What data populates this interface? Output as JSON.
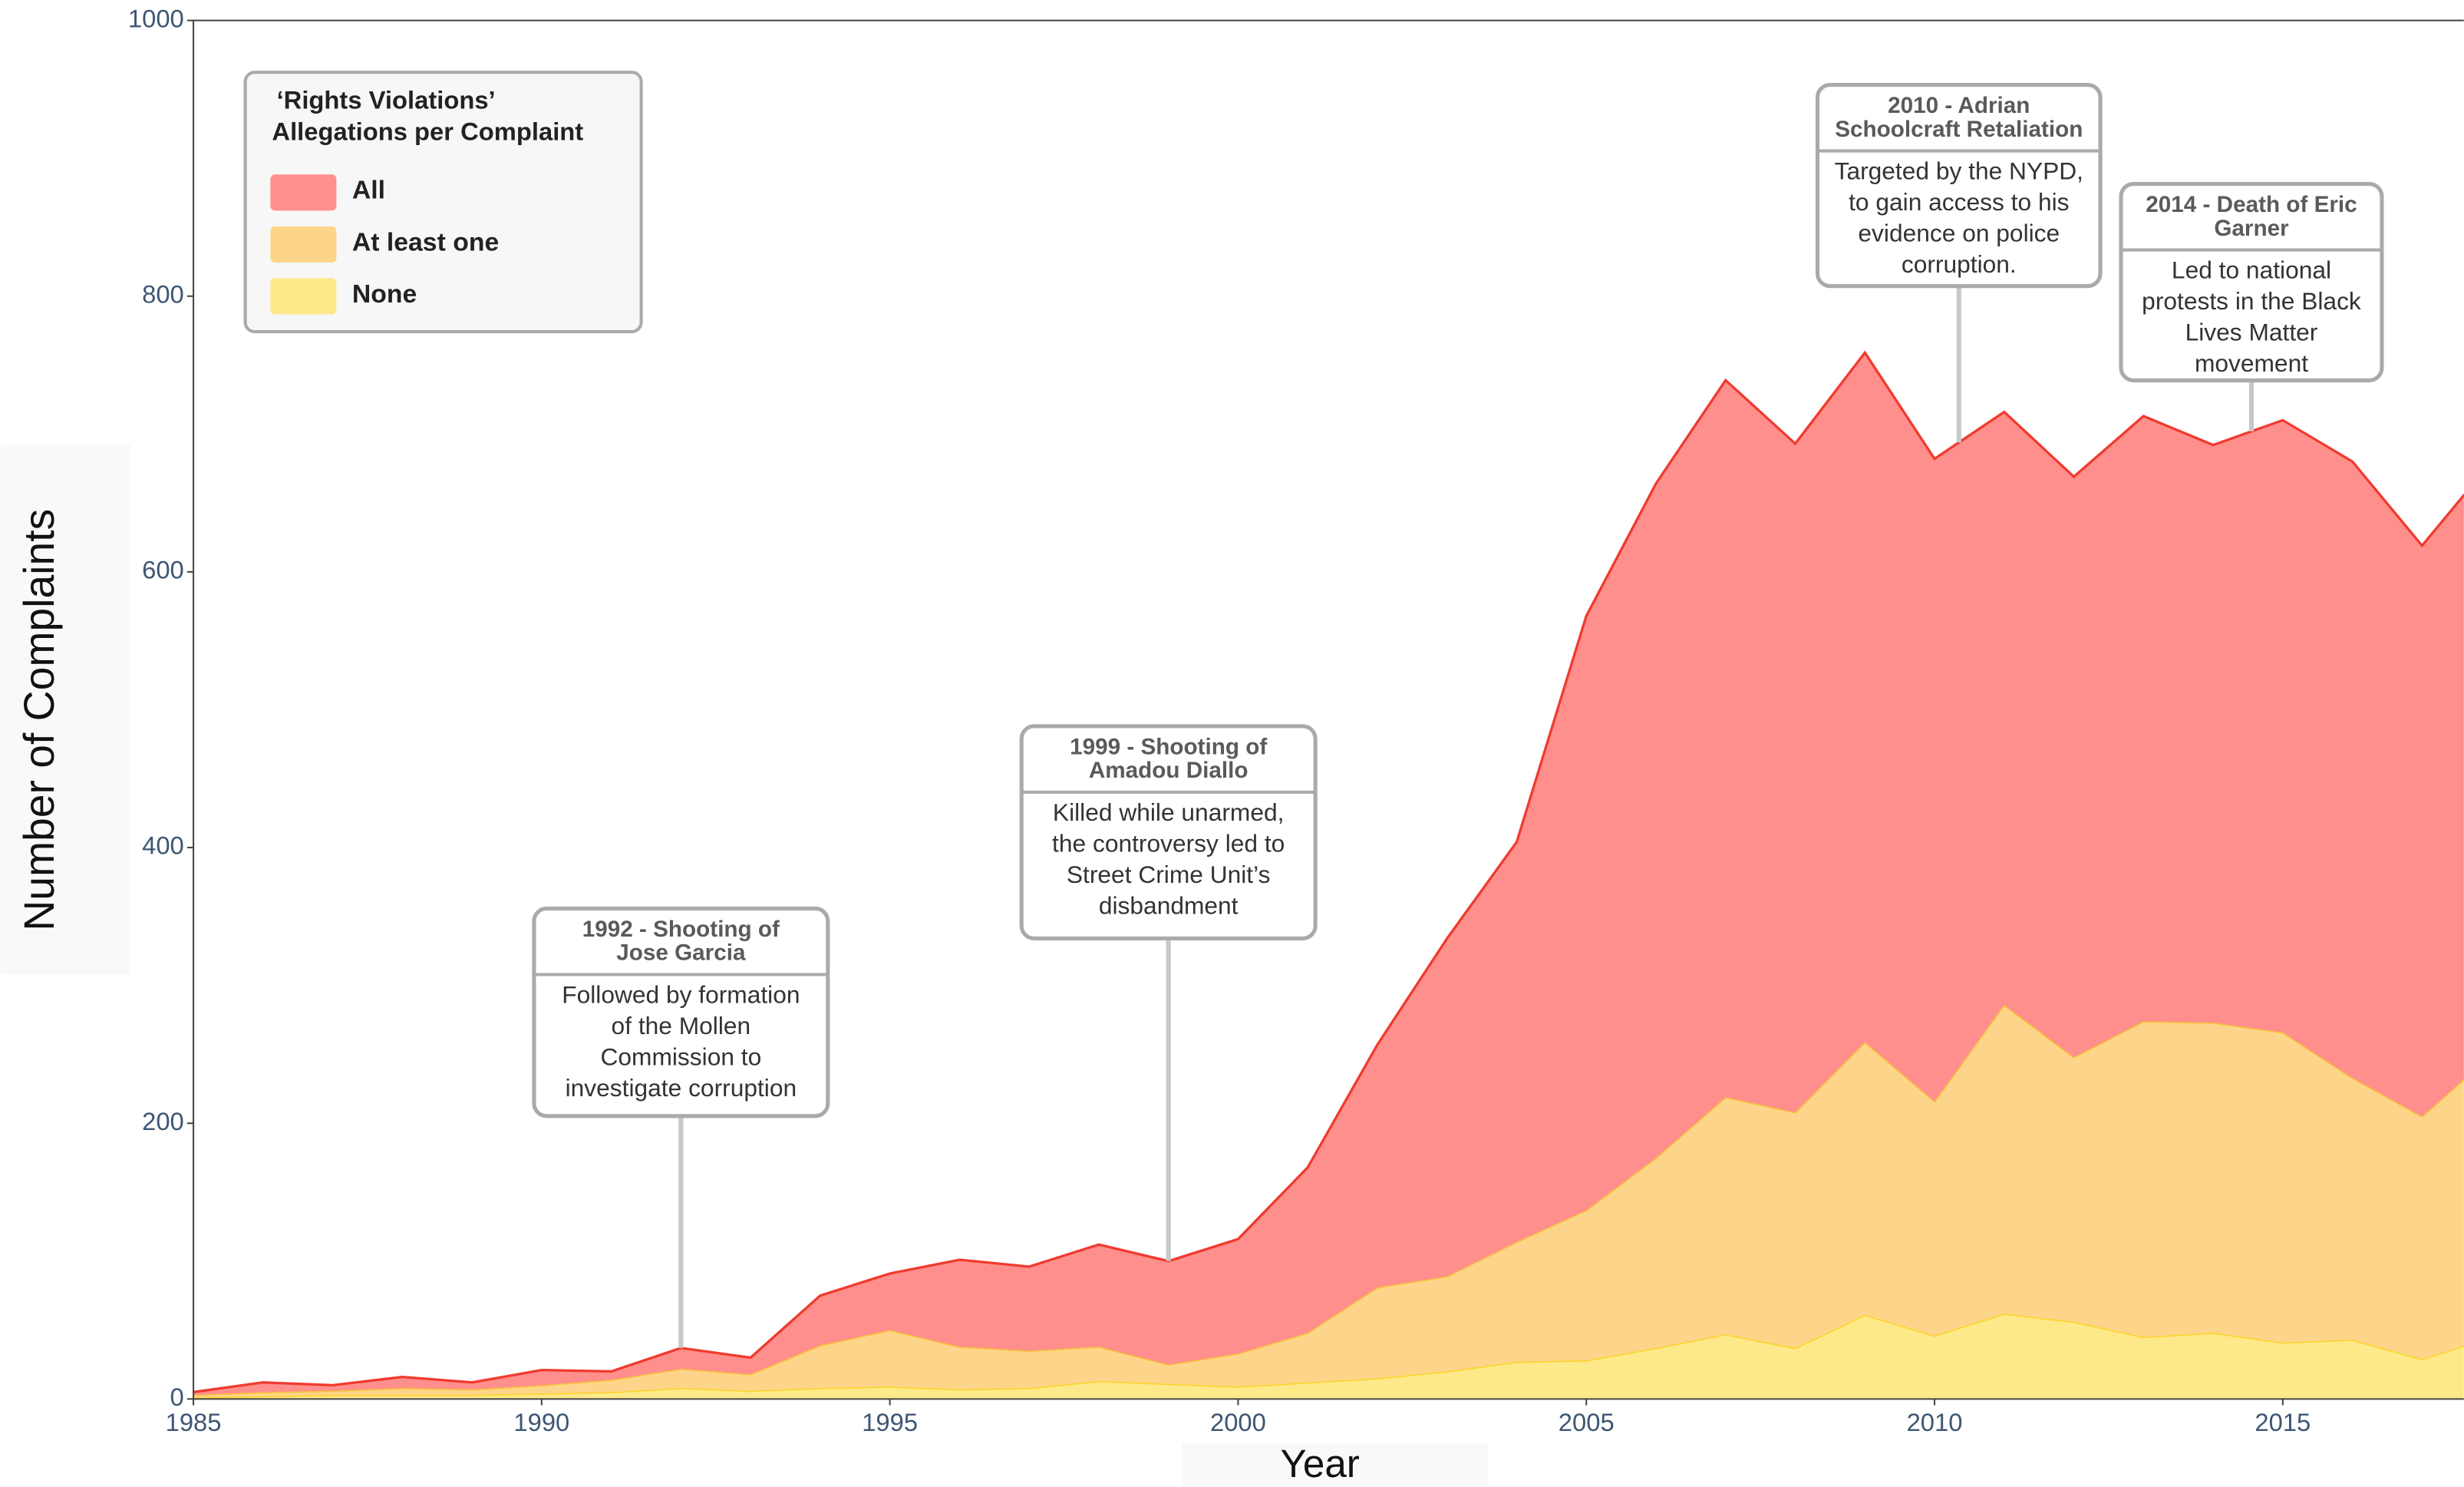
{
  "chart_data": {
    "type": "stacked_area",
    "x": [
      1985,
      1986,
      1987,
      1988,
      1989,
      1990,
      1991,
      1992,
      1993,
      1994,
      1995,
      1996,
      1997,
      1998,
      1999,
      2000,
      2001,
      2002,
      2003,
      2004,
      2005,
      2006,
      2007,
      2008,
      2009,
      2010,
      2011,
      2012,
      2013,
      2014,
      2015,
      2016,
      2017,
      2018
    ],
    "series": [
      {
        "name": "None",
        "color": "#fde98a",
        "line_color": "#fcd52c",
        "values": [
          1,
          2,
          3,
          3,
          3,
          4,
          5,
          8,
          6,
          8,
          9,
          7,
          8,
          13,
          11,
          9,
          12,
          15,
          20,
          27,
          28,
          37,
          47,
          37,
          61,
          46,
          62,
          56,
          45,
          48,
          41,
          43,
          29,
          45
        ]
      },
      {
        "name": "At least one",
        "color": "#fdd58a",
        "line_color": "#f9c23c",
        "values": [
          2,
          3,
          3,
          5,
          4,
          6,
          9,
          14,
          12,
          31,
          41,
          31,
          27,
          25,
          14,
          24,
          36,
          66,
          69,
          87,
          109,
          138,
          172,
          171,
          198,
          170,
          224,
          192,
          229,
          225,
          225,
          190,
          176,
          205
        ]
      },
      {
        "name": "All",
        "color": "#ff8f8c",
        "line_color": "#f03a2e",
        "values": [
          2,
          7,
          4,
          8,
          5,
          11,
          6,
          15,
          12,
          36,
          41,
          63,
          61,
          74,
          75,
          83,
          120,
          176,
          245,
          290,
          431,
          489,
          520,
          485,
          500,
          466,
          430,
          421,
          439,
          419,
          444,
          447,
          414,
          430
        ]
      }
    ],
    "xlim": [
      1985,
      2017.6
    ],
    "xticks": [
      1985,
      1990,
      1995,
      2000,
      2005,
      2010,
      2015
    ],
    "ylim": [
      0,
      1000
    ],
    "yticks": [
      0,
      200,
      400,
      600,
      800,
      1000
    ],
    "xlabel": "Year",
    "ylabel": "Number of Complaints",
    "legend_title": [
      "‘Rights Violations’",
      "Allegations per Complaint"
    ],
    "legend_position": "top-left",
    "annotations": [
      {
        "x": 1992,
        "title": [
          "1992 - Shooting of",
          "Jose Garcia"
        ],
        "text": [
          "Followed by formation",
          "of the Mollen",
          "Commission to",
          "investigate corruption"
        ]
      },
      {
        "x": 1999,
        "title": [
          "1999 - Shooting of",
          "Amadou Diallo"
        ],
        "text": [
          "Killed while unarmed,",
          "the controversy led to",
          "Street Crime Unit’s",
          "disbandment"
        ]
      },
      {
        "x": 2010.35,
        "title": [
          "2010 - Adrian",
          "Schoolcraft Retaliation"
        ],
        "text": [
          "Targeted by the NYPD,",
          "to gain access to his",
          "evidence on police",
          "corruption."
        ]
      },
      {
        "x": 2014.55,
        "title": [
          "2014 - Death of Eric",
          "Garner"
        ],
        "text": [
          "Led to national",
          "protests in the Black",
          "Lives Matter",
          "movement"
        ]
      }
    ]
  }
}
